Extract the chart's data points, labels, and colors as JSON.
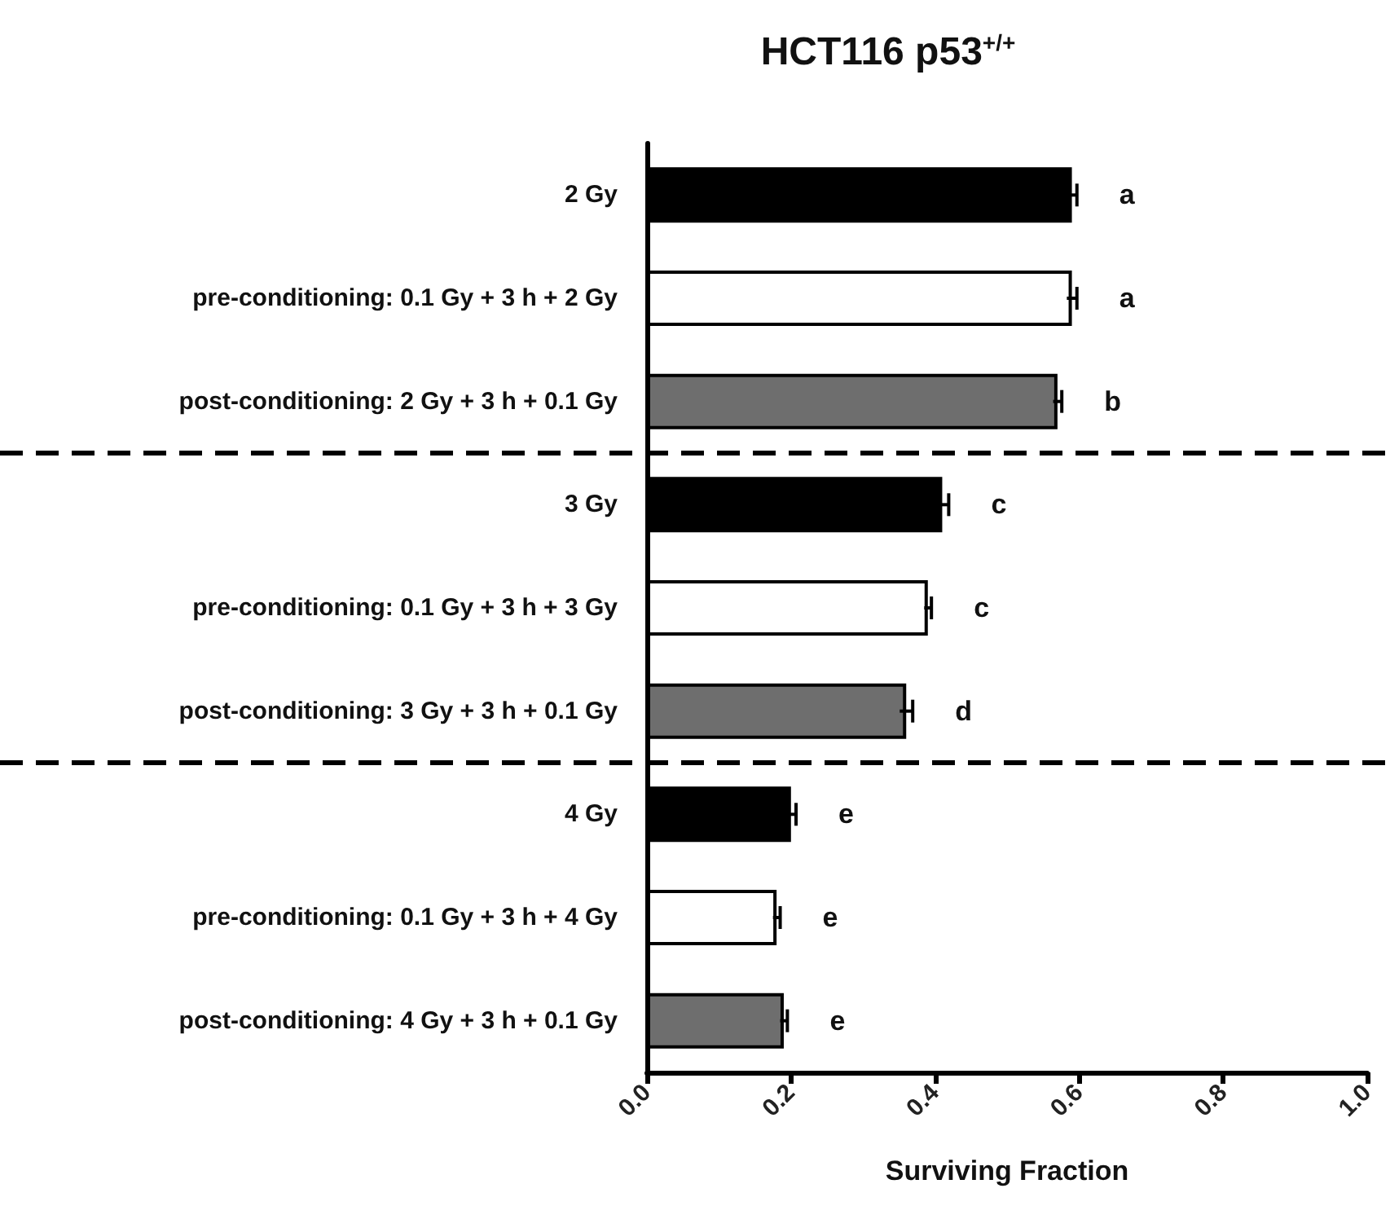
{
  "chart_data": {
    "type": "bar",
    "orientation": "horizontal",
    "title": "HCT116 p53$^{+/+}$",
    "xlabel": "Surviving Fraction",
    "categories": [
      "2 Gy",
      "pre-conditioning: 0.1 Gy + 3 h + 2 Gy",
      "post-conditioning: 2 Gy + 3 h + 0.1 Gy",
      "3 Gy",
      "pre-conditioning: 0.1 Gy + 3 h + 3 Gy",
      "post-conditioning: 3 Gy + 3 h + 0.1 Gy",
      "4 Gy",
      "pre-conditioning: 0.1 Gy + 3 h + 4 Gy",
      "post-conditioning: 4 Gy + 3 h + 0.1 Gy"
    ],
    "values": [
      0.59,
      0.59,
      0.57,
      0.41,
      0.39,
      0.36,
      0.2,
      0.18,
      0.19
    ],
    "errors": [
      0.007,
      0.007,
      0.006,
      0.009,
      0.005,
      0.009,
      0.007,
      0.005,
      0.005
    ],
    "colors": [
      "#000000",
      "#ffffff",
      "#6e6e6e",
      "#000000",
      "#ffffff",
      "#6e6e6e",
      "#000000",
      "#ffffff",
      "#6e6e6e"
    ],
    "xlim": [
      0,
      1
    ],
    "xticks": [
      {
        "value": 0,
        "label": "0.0"
      },
      0.2,
      0.4,
      0.6,
      0.8,
      {
        "value": 1,
        "label": "1.0"
      }
    ],
    "grid": false,
    "annotations": [
      "a",
      "a",
      "b",
      "c",
      "c",
      "d",
      "e",
      "e",
      "e"
    ]
  }
}
